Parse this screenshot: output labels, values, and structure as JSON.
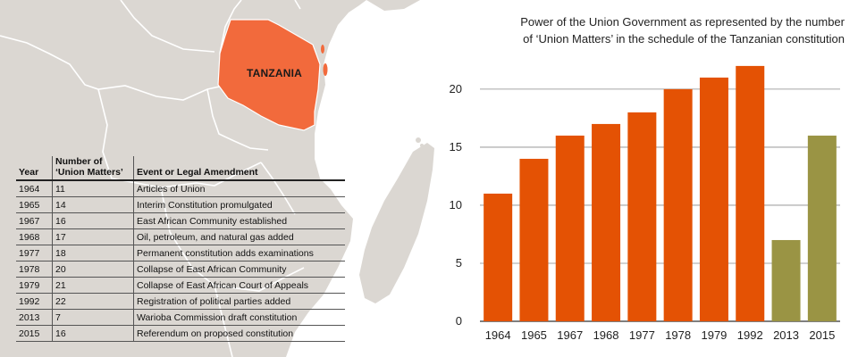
{
  "map": {
    "label": "TANZANIA"
  },
  "table": {
    "headers": [
      "Year",
      "Number of ‘Union Matters’",
      "Event or Legal Amendment"
    ],
    "header_lines": {
      "num_line1": "Number of",
      "num_line2": "‘Union Matters’"
    },
    "rows": [
      {
        "year": "1964",
        "num": "11",
        "event": "Articles of Union"
      },
      {
        "year": "1965",
        "num": "14",
        "event": "Interim Constitution promulgated"
      },
      {
        "year": "1967",
        "num": "16",
        "event": "East African Community established"
      },
      {
        "year": "1968",
        "num": "17",
        "event": "Oil, petroleum, and natural gas added"
      },
      {
        "year": "1977",
        "num": "18",
        "event": "Permanent constitution adds examinations"
      },
      {
        "year": "1978",
        "num": "20",
        "event": "Collapse of East African Community"
      },
      {
        "year": "1979",
        "num": "21",
        "event": "Collapse of East African Court of Appeals"
      },
      {
        "year": "1992",
        "num": "22",
        "event": "Registration of political parties added"
      },
      {
        "year": "2013",
        "num": "7",
        "event": "Warioba Commission draft constitution"
      },
      {
        "year": "2015",
        "num": "16",
        "event": "Referendum on proposed constitution"
      }
    ]
  },
  "chart_data": {
    "type": "bar",
    "title": "Power of the Union Government as represented by the number of ‘Union Matters’ in the schedule of the Tanzanian constitution",
    "title_lines": [
      "Power of the Union Government as represented by the number",
      "of ‘Union Matters’ in the schedule of the Tanzanian constitution"
    ],
    "categories": [
      "1964",
      "1965",
      "1967",
      "1968",
      "1977",
      "1978",
      "1979",
      "1992",
      "2013",
      "2015"
    ],
    "values": [
      11,
      14,
      16,
      17,
      18,
      20,
      21,
      22,
      7,
      16
    ],
    "bar_colors": [
      "#e45204",
      "#e45204",
      "#e45204",
      "#e45204",
      "#e45204",
      "#e45204",
      "#e45204",
      "#e45204",
      "#9a9444",
      "#9a9444"
    ],
    "ylim": [
      0,
      22
    ],
    "yticks": [
      0,
      5,
      10,
      15,
      20
    ],
    "grid": true,
    "xlabel": "",
    "ylabel": ""
  },
  "colors": {
    "orange": "#e45204",
    "olive": "#9a9444",
    "tanzania": "#f26a3c",
    "land": "#dbd7d2",
    "border": "#ffffff"
  }
}
